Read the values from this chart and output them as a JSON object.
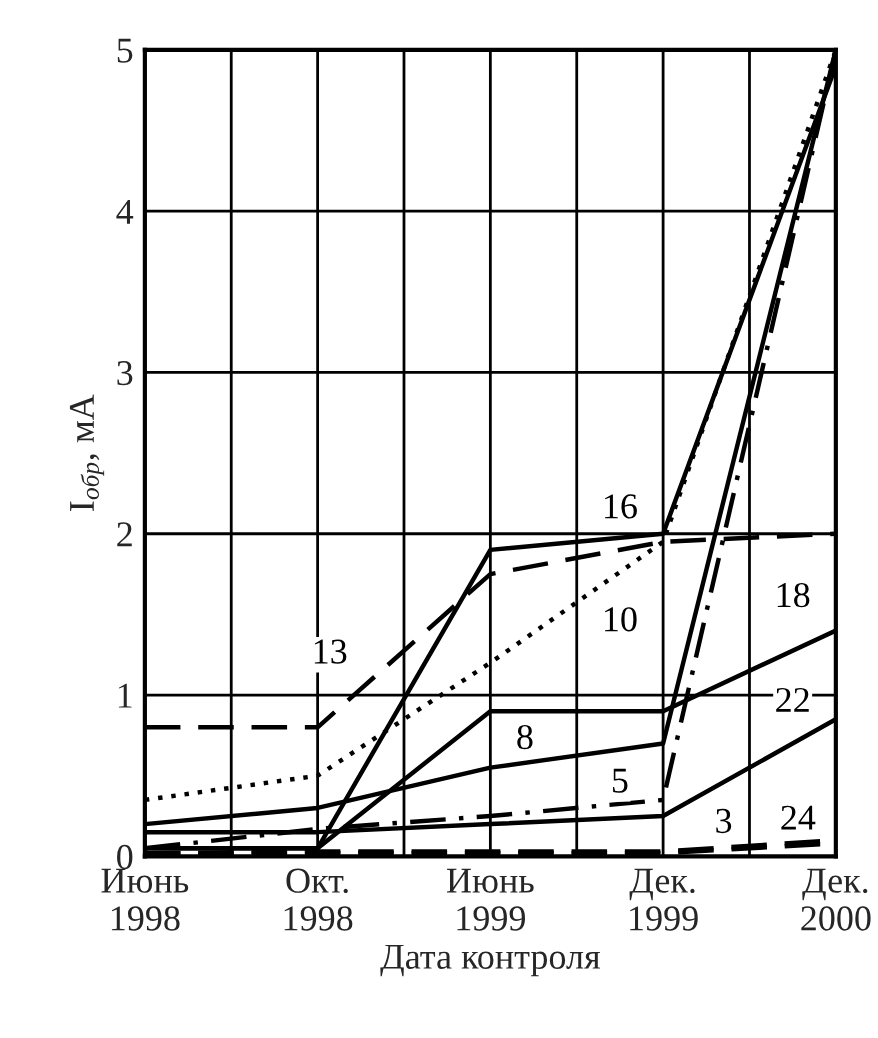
{
  "chart_data": {
    "type": "line",
    "xlabel": "Дата контроля",
    "ylabel": "I$_{обр}$, мА",
    "categories": [
      "Июнь\n1998",
      "Окт.\n1998",
      "Июнь\n1999",
      "Дек.\n1999",
      "Дек.\n2000"
    ],
    "ylim": [
      0,
      5
    ],
    "yticks": [
      0,
      1,
      2,
      3,
      4,
      5
    ],
    "grid": true,
    "legend": false,
    "marker": "none",
    "series": [
      {
        "name": "13",
        "color": "#000000",
        "line_style": "dashed",
        "values": [
          0.8,
          0.8,
          1.75,
          1.95,
          2.0
        ]
      },
      {
        "name": "16",
        "color": "#000000",
        "line_style": "solid",
        "values": [
          0.05,
          0.05,
          1.9,
          2.0,
          4.9
        ]
      },
      {
        "name": "10",
        "color": "#000000",
        "line_style": "dotted",
        "values": [
          0.35,
          0.5,
          1.2,
          1.95,
          5.0
        ]
      },
      {
        "name": "8",
        "color": "#000000",
        "line_style": "solid",
        "values": [
          0.2,
          0.3,
          0.55,
          0.7,
          5.0
        ]
      },
      {
        "name": "18",
        "color": "#000000",
        "line_style": "solid",
        "values": [
          0.05,
          0.05,
          0.9,
          0.9,
          1.4
        ]
      },
      {
        "name": "5",
        "color": "#000000",
        "line_style": "dashdot",
        "values": [
          0.05,
          0.17,
          0.25,
          0.35,
          5.0
        ]
      },
      {
        "name": "22",
        "color": "#000000",
        "line_style": "solid",
        "values": [
          0.15,
          0.15,
          0.2,
          0.25,
          0.85
        ]
      },
      {
        "name": "3",
        "color": "#000000",
        "line_style": "dashed",
        "values": [
          0.02,
          0.03,
          0.03,
          0.03,
          0.1
        ]
      },
      {
        "name": "24",
        "color": "#000000",
        "line_style": "dashed",
        "values": [
          0.02,
          0.02,
          0.02,
          0.02,
          0.08
        ]
      }
    ]
  }
}
